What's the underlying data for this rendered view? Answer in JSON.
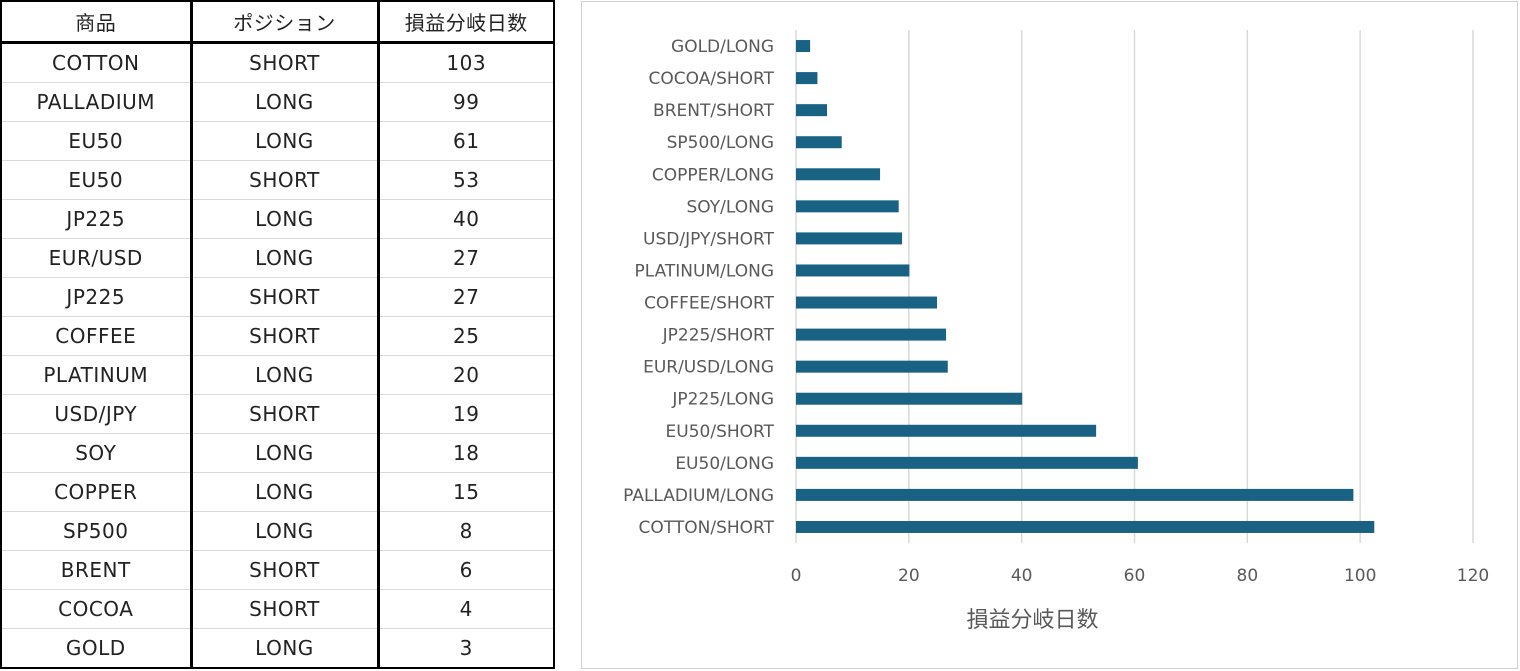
{
  "table": {
    "headers": [
      "商品",
      "ポジション",
      "損益分岐日数"
    ],
    "rows": [
      [
        "COTTON",
        "SHORT",
        "103"
      ],
      [
        "PALLADIUM",
        "LONG",
        "99"
      ],
      [
        "EU50",
        "LONG",
        "61"
      ],
      [
        "EU50",
        "SHORT",
        "53"
      ],
      [
        "JP225",
        "LONG",
        "40"
      ],
      [
        "EUR/USD",
        "LONG",
        "27"
      ],
      [
        "JP225",
        "SHORT",
        "27"
      ],
      [
        "COFFEE",
        "SHORT",
        "25"
      ],
      [
        "PLATINUM",
        "LONG",
        "20"
      ],
      [
        "USD/JPY",
        "SHORT",
        "19"
      ],
      [
        "SOY",
        "LONG",
        "18"
      ],
      [
        "COPPER",
        "LONG",
        "15"
      ],
      [
        "SP500",
        "LONG",
        "8"
      ],
      [
        "BRENT",
        "SHORT",
        "6"
      ],
      [
        "COCOA",
        "SHORT",
        "4"
      ],
      [
        "GOLD",
        "LONG",
        "3"
      ]
    ]
  },
  "chart_data": {
    "type": "bar",
    "orientation": "horizontal",
    "categories": [
      "COTTON/SHORT",
      "PALLADIUM/LONG",
      "EU50/LONG",
      "EU50/SHORT",
      "JP225/LONG",
      "EUR/USD/LONG",
      "JP225/SHORT",
      "COFFEE/SHORT",
      "PLATINUM/LONG",
      "USD/JPY/SHORT",
      "SOY/LONG",
      "COPPER/LONG",
      "SP500/LONG",
      "BRENT/SHORT",
      "COCOA/SHORT",
      "GOLD/LONG"
    ],
    "values": [
      102.5,
      98.8,
      60.6,
      53.2,
      40.1,
      26.9,
      26.6,
      25.0,
      20.1,
      18.8,
      18.2,
      14.9,
      8.1,
      5.5,
      3.8,
      2.5
    ],
    "xlabel": "損益分岐日数",
    "ylabel": "",
    "xlim": [
      0,
      120
    ],
    "xticks": [
      "0",
      "20",
      "40",
      "60",
      "80",
      "100",
      "120"
    ],
    "grid": true,
    "bar_color": "#1a6283",
    "grid_color": "#d9d9d9"
  }
}
